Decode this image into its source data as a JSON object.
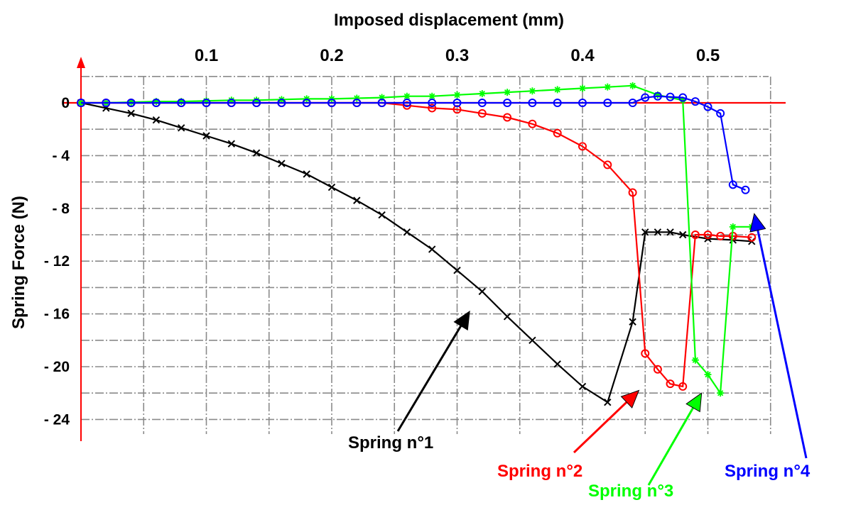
{
  "chart_data": {
    "type": "line",
    "title": "",
    "xlabel": "Imposed displacement (mm)",
    "ylabel": "Spring Force (N)",
    "xlim": [
      0,
      0.55
    ],
    "ylim": [
      -25,
      2
    ],
    "x_ticks": [
      {
        "value": 0.1,
        "label": "0.1"
      },
      {
        "value": 0.2,
        "label": "0.2"
      },
      {
        "value": 0.3,
        "label": "0.3"
      },
      {
        "value": 0.4,
        "label": "0.4"
      },
      {
        "value": 0.5,
        "label": "0.5"
      }
    ],
    "y_ticks": [
      {
        "value": 0,
        "label": "0"
      },
      {
        "value": -4,
        "label": "- 4"
      },
      {
        "value": -8,
        "label": "- 8"
      },
      {
        "value": -12,
        "label": "- 12"
      },
      {
        "value": -16,
        "label": "- 16"
      },
      {
        "value": -20,
        "label": "- 20"
      },
      {
        "value": -24,
        "label": "- 24"
      }
    ],
    "grid": true,
    "axis_color": "#ff0000",
    "series": [
      {
        "name": "Spring n°1",
        "color": "#000000",
        "marker": "x",
        "points": [
          [
            0,
            0
          ],
          [
            0.02,
            -0.4
          ],
          [
            0.04,
            -0.8
          ],
          [
            0.06,
            -1.3
          ],
          [
            0.08,
            -1.9
          ],
          [
            0.1,
            -2.5
          ],
          [
            0.12,
            -3.1
          ],
          [
            0.14,
            -3.8
          ],
          [
            0.16,
            -4.6
          ],
          [
            0.18,
            -5.4
          ],
          [
            0.2,
            -6.4
          ],
          [
            0.22,
            -7.4
          ],
          [
            0.24,
            -8.5
          ],
          [
            0.26,
            -9.8
          ],
          [
            0.28,
            -11.1
          ],
          [
            0.3,
            -12.7
          ],
          [
            0.32,
            -14.3
          ],
          [
            0.34,
            -16.2
          ],
          [
            0.36,
            -18.0
          ],
          [
            0.38,
            -19.8
          ],
          [
            0.4,
            -21.5
          ],
          [
            0.42,
            -22.7
          ],
          [
            0.44,
            -16.6
          ],
          [
            0.45,
            -9.8
          ],
          [
            0.46,
            -9.8
          ],
          [
            0.47,
            -9.8
          ],
          [
            0.48,
            -10.0
          ],
          [
            0.5,
            -10.3
          ],
          [
            0.52,
            -10.4
          ],
          [
            0.535,
            -10.5
          ]
        ]
      },
      {
        "name": "Spring n°2",
        "color": "#ff0000",
        "marker": "o",
        "points": [
          [
            0,
            0
          ],
          [
            0.02,
            0
          ],
          [
            0.04,
            0
          ],
          [
            0.06,
            0
          ],
          [
            0.08,
            0
          ],
          [
            0.1,
            0
          ],
          [
            0.12,
            0
          ],
          [
            0.14,
            0
          ],
          [
            0.16,
            0
          ],
          [
            0.18,
            0
          ],
          [
            0.2,
            0
          ],
          [
            0.22,
            0
          ],
          [
            0.24,
            0
          ],
          [
            0.26,
            -0.2
          ],
          [
            0.28,
            -0.4
          ],
          [
            0.3,
            -0.5
          ],
          [
            0.32,
            -0.8
          ],
          [
            0.34,
            -1.1
          ],
          [
            0.36,
            -1.6
          ],
          [
            0.38,
            -2.3
          ],
          [
            0.4,
            -3.3
          ],
          [
            0.42,
            -4.7
          ],
          [
            0.44,
            -6.8
          ],
          [
            0.45,
            -19.0
          ],
          [
            0.46,
            -20.2
          ],
          [
            0.47,
            -21.3
          ],
          [
            0.48,
            -21.5
          ],
          [
            0.49,
            -10.0
          ],
          [
            0.5,
            -10.0
          ],
          [
            0.51,
            -10.1
          ],
          [
            0.52,
            -10.1
          ],
          [
            0.535,
            -10.2
          ]
        ]
      },
      {
        "name": "Spring n°3",
        "color": "#00ff00",
        "marker": "*",
        "points": [
          [
            0,
            0
          ],
          [
            0.02,
            0
          ],
          [
            0.04,
            0.05
          ],
          [
            0.06,
            0.1
          ],
          [
            0.08,
            0.1
          ],
          [
            0.1,
            0.15
          ],
          [
            0.12,
            0.2
          ],
          [
            0.14,
            0.2
          ],
          [
            0.16,
            0.25
          ],
          [
            0.18,
            0.3
          ],
          [
            0.2,
            0.3
          ],
          [
            0.22,
            0.35
          ],
          [
            0.24,
            0.4
          ],
          [
            0.26,
            0.5
          ],
          [
            0.28,
            0.5
          ],
          [
            0.3,
            0.6
          ],
          [
            0.32,
            0.7
          ],
          [
            0.34,
            0.8
          ],
          [
            0.36,
            0.9
          ],
          [
            0.38,
            1.0
          ],
          [
            0.4,
            1.1
          ],
          [
            0.42,
            1.2
          ],
          [
            0.44,
            1.3
          ],
          [
            0.46,
            0.6
          ],
          [
            0.48,
            0.2
          ],
          [
            0.49,
            -19.5
          ],
          [
            0.5,
            -20.6
          ],
          [
            0.51,
            -22.0
          ],
          [
            0.52,
            -9.4
          ],
          [
            0.535,
            -9.4
          ]
        ]
      },
      {
        "name": "Spring n°4",
        "color": "#0000ff",
        "marker": "o",
        "points": [
          [
            0,
            0
          ],
          [
            0.02,
            0
          ],
          [
            0.04,
            0
          ],
          [
            0.06,
            0
          ],
          [
            0.08,
            0
          ],
          [
            0.1,
            0
          ],
          [
            0.12,
            0
          ],
          [
            0.14,
            0
          ],
          [
            0.16,
            0
          ],
          [
            0.18,
            0
          ],
          [
            0.2,
            0
          ],
          [
            0.22,
            0
          ],
          [
            0.24,
            0
          ],
          [
            0.26,
            0
          ],
          [
            0.28,
            0
          ],
          [
            0.3,
            0
          ],
          [
            0.32,
            0
          ],
          [
            0.34,
            0
          ],
          [
            0.36,
            0
          ],
          [
            0.38,
            0
          ],
          [
            0.4,
            0
          ],
          [
            0.42,
            0
          ],
          [
            0.44,
            0
          ],
          [
            0.45,
            0.4
          ],
          [
            0.46,
            0.5
          ],
          [
            0.47,
            0.45
          ],
          [
            0.48,
            0.4
          ],
          [
            0.49,
            0.1
          ],
          [
            0.5,
            -0.3
          ],
          [
            0.51,
            -0.8
          ],
          [
            0.52,
            -6.2
          ],
          [
            0.53,
            -6.6
          ]
        ]
      }
    ],
    "annotations": [
      {
        "text": "Spring n°1",
        "color": "#000000",
        "arrow_to": [
          0.31,
          -15.8
        ]
      },
      {
        "text": "Spring n°2",
        "color": "#ff0000",
        "arrow_to": [
          0.445,
          -21.8
        ]
      },
      {
        "text": "Spring n°3",
        "color": "#00ff00",
        "arrow_to": [
          0.495,
          -22.0
        ]
      },
      {
        "text": "Spring n°4",
        "color": "#0000ff",
        "arrow_to": [
          0.537,
          -8.4
        ]
      }
    ]
  }
}
